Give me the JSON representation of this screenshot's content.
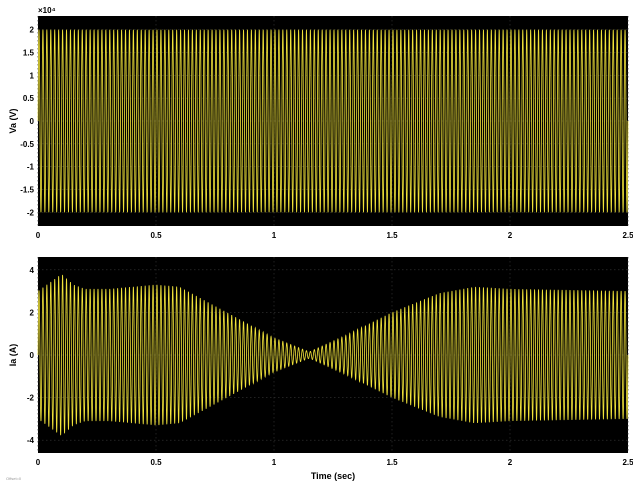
{
  "chart_data": [
    {
      "type": "line",
      "title": "",
      "xlabel": "",
      "ylabel": "Va (V)",
      "exponent_label": "×10⁴",
      "xlim": [
        0,
        2.5
      ],
      "ylim": [
        -2.3,
        2.3
      ],
      "x_ticks": [
        0,
        0.5,
        1,
        1.5,
        2,
        2.5
      ],
      "x_tick_labels": [
        "0",
        "0.5",
        "1",
        "1.5",
        "2",
        "2.5"
      ],
      "y_ticks": [
        2,
        1.5,
        1,
        0.5,
        0,
        -0.5,
        -1,
        -1.5,
        -2
      ],
      "y_tick_labels": [
        "2",
        "1.5",
        "1",
        "0.5",
        "0",
        "-0.5",
        "-1",
        "-1.5",
        "-2"
      ],
      "grid": true,
      "background": "#000000",
      "trace_color": "#f1e33a",
      "signal": {
        "waveform": "sinusoid",
        "frequency_hz": 60,
        "envelope": {
          "t": [
            0,
            2.5
          ],
          "amplitude": [
            2,
            2
          ]
        }
      }
    },
    {
      "type": "line",
      "title": "",
      "xlabel": "Time (sec)",
      "ylabel": "Ia (A)",
      "xlim": [
        0,
        2.5
      ],
      "ylim": [
        -4.6,
        4.6
      ],
      "x_ticks": [
        0,
        0.5,
        1,
        1.5,
        2,
        2.5
      ],
      "x_tick_labels": [
        "0",
        "0.5",
        "1",
        "1.5",
        "2",
        "2.5"
      ],
      "y_ticks": [
        4,
        2,
        0,
        -2,
        -4
      ],
      "y_tick_labels": [
        "4",
        "2",
        "0",
        "-2",
        "-4"
      ],
      "grid": true,
      "background": "#000000",
      "trace_color": "#f1e33a",
      "signal": {
        "waveform": "sinusoid",
        "frequency_hz": 60,
        "envelope": {
          "t": [
            0,
            0.05,
            0.1,
            0.15,
            0.2,
            0.3,
            0.4,
            0.5,
            0.6,
            0.8,
            1.0,
            1.15,
            1.3,
            1.5,
            1.7,
            1.85,
            2.0,
            2.5
          ],
          "amplitude": [
            3.0,
            3.4,
            3.8,
            3.3,
            3.1,
            3.1,
            3.2,
            3.3,
            3.2,
            2.0,
            0.8,
            0.15,
            0.9,
            2.0,
            2.9,
            3.2,
            3.1,
            3.0
          ]
        }
      }
    }
  ],
  "footer": {
    "offset_note": "Offset=0"
  }
}
